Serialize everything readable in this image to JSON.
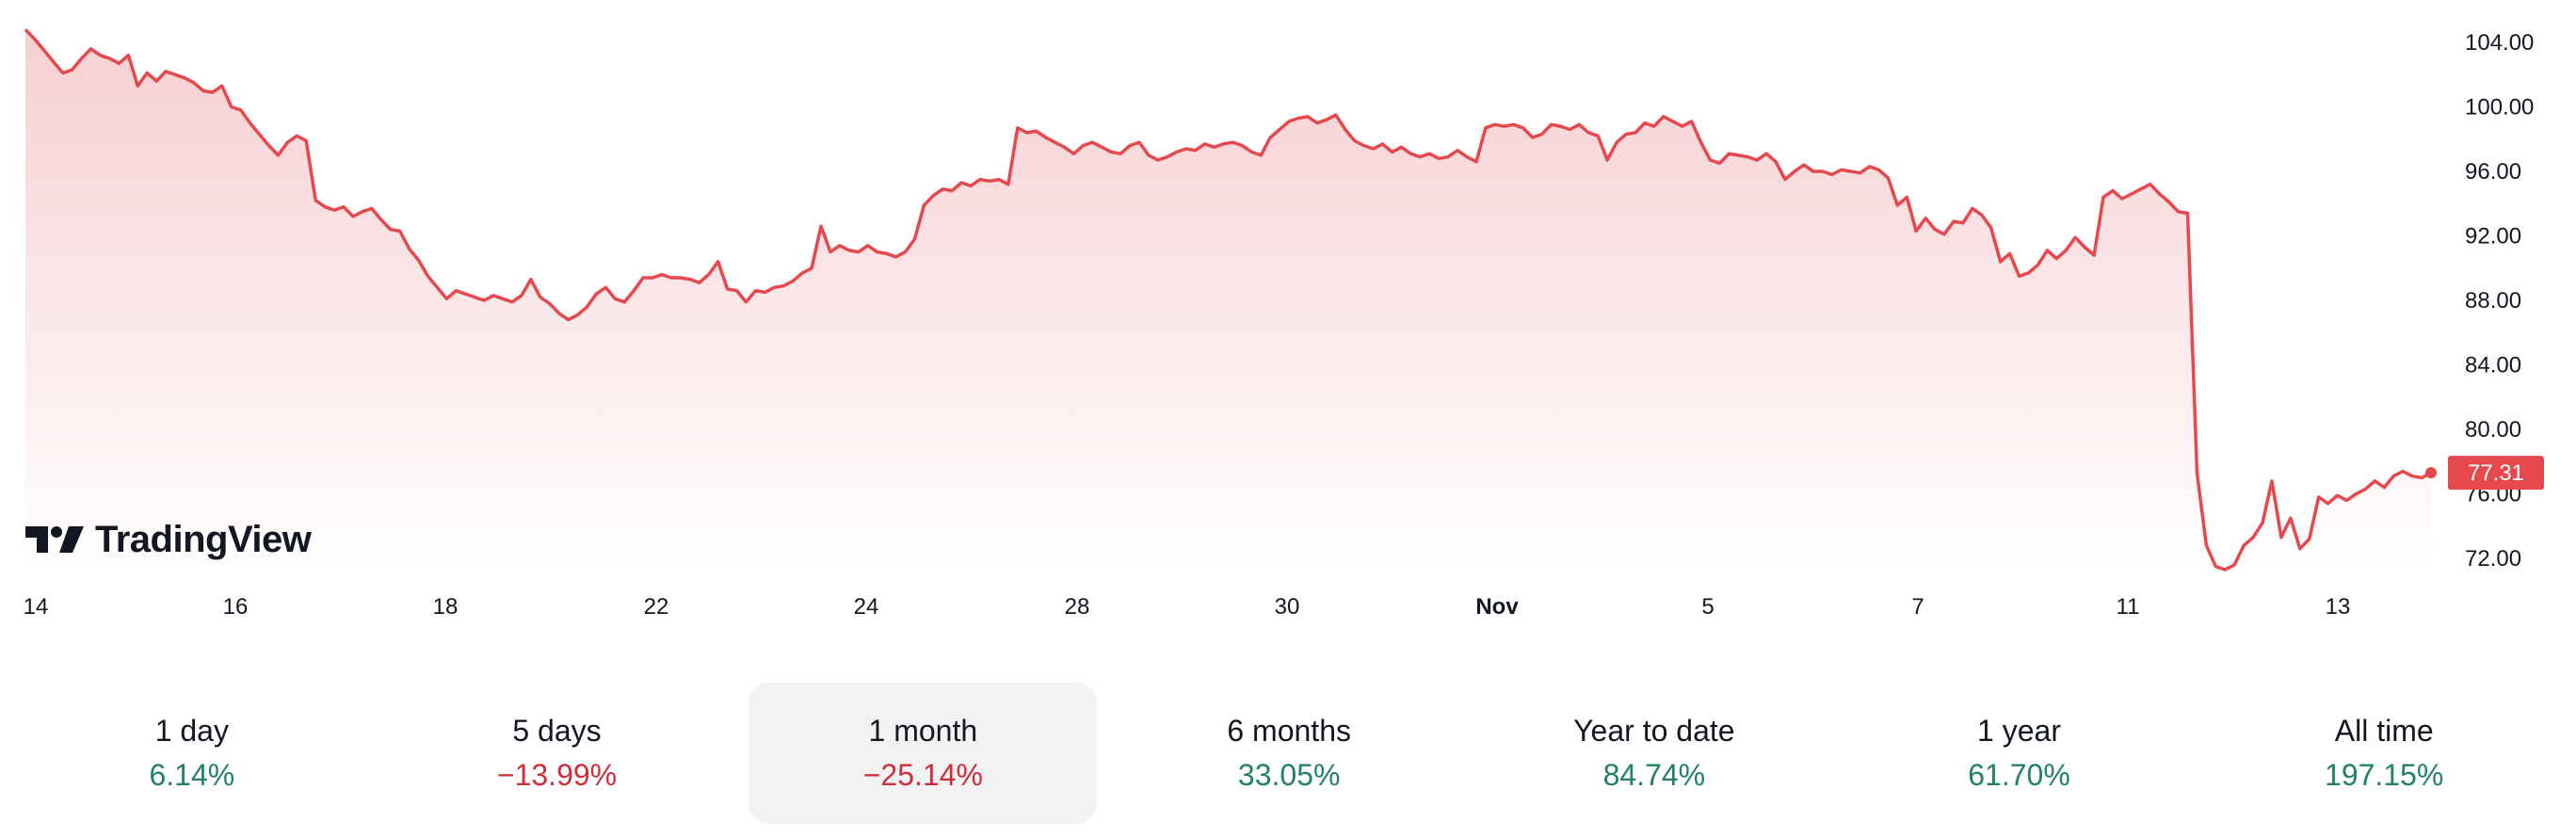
{
  "brand": {
    "name": "TradingView",
    "logo_icon": "tradingview-logo-icon"
  },
  "colors": {
    "line": "#e5484d",
    "area_top": "#f7cfd2",
    "area_bottom": "#ffffff",
    "positive": "#22806b",
    "negative": "#cc2f3c"
  },
  "chart_data": {
    "type": "area",
    "title": "",
    "xlabel": "",
    "ylabel": "",
    "ylim": [
      71,
      105
    ],
    "y_ticks": [
      "104.00",
      "100.00",
      "96.00",
      "92.00",
      "88.00",
      "84.00",
      "80.00",
      "76.00",
      "72.00"
    ],
    "x_ticks": [
      {
        "label": "14",
        "bold": false
      },
      {
        "label": "16",
        "bold": false
      },
      {
        "label": "18",
        "bold": false
      },
      {
        "label": "22",
        "bold": false
      },
      {
        "label": "24",
        "bold": false
      },
      {
        "label": "28",
        "bold": false
      },
      {
        "label": "30",
        "bold": false
      },
      {
        "label": "Nov",
        "bold": true
      },
      {
        "label": "5",
        "bold": false
      },
      {
        "label": "7",
        "bold": false
      },
      {
        "label": "11",
        "bold": false
      },
      {
        "label": "13",
        "bold": false
      }
    ],
    "last_price": "77.31",
    "grid": false,
    "series": [
      {
        "values": [
          104.8,
          104.2,
          103.5,
          102.8,
          102.1,
          102.3,
          103.0,
          103.6,
          103.2,
          103.0,
          102.7,
          103.2,
          101.3,
          102.1,
          101.6,
          102.2,
          102.0,
          101.8,
          101.5,
          101.0,
          100.9,
          101.3,
          100.0,
          99.8,
          99.0,
          98.3,
          97.6,
          97.0,
          97.8,
          98.2,
          97.9,
          94.2,
          93.8,
          93.6,
          93.8,
          93.2,
          93.5,
          93.7,
          93.0,
          92.4,
          92.3,
          91.2,
          90.5,
          89.5,
          88.8,
          88.1,
          88.6,
          88.4,
          88.2,
          88.0,
          88.3,
          88.1,
          87.9,
          88.3,
          89.3,
          88.2,
          87.8,
          87.2,
          86.8,
          87.1,
          87.6,
          88.4,
          88.8,
          88.1,
          87.9,
          88.6,
          89.4,
          89.4,
          89.6,
          89.4,
          89.4,
          89.3,
          89.1,
          89.6,
          90.4,
          88.7,
          88.6,
          87.9,
          88.6,
          88.5,
          88.8,
          88.9,
          89.2,
          89.7,
          90.0,
          92.6,
          91.0,
          91.4,
          91.1,
          91.0,
          91.4,
          91.0,
          90.9,
          90.7,
          91.0,
          91.8,
          93.9,
          94.5,
          94.9,
          94.8,
          95.3,
          95.1,
          95.5,
          95.4,
          95.5,
          95.2,
          98.7,
          98.4,
          98.5,
          98.1,
          97.8,
          97.5,
          97.1,
          97.6,
          97.8,
          97.5,
          97.2,
          97.1,
          97.6,
          97.8,
          97.0,
          96.7,
          96.9,
          97.2,
          97.4,
          97.3,
          97.7,
          97.5,
          97.7,
          97.8,
          97.6,
          97.2,
          97.0,
          98.1,
          98.6,
          99.1,
          99.3,
          99.4,
          99.0,
          99.2,
          99.5,
          98.6,
          97.9,
          97.6,
          97.4,
          97.7,
          97.2,
          97.5,
          97.1,
          96.9,
          97.1,
          96.8,
          96.9,
          97.3,
          96.9,
          96.6,
          98.7,
          98.9,
          98.8,
          98.9,
          98.7,
          98.1,
          98.3,
          98.9,
          98.8,
          98.6,
          98.9,
          98.4,
          98.2,
          96.7,
          97.8,
          98.3,
          98.4,
          99.0,
          98.8,
          99.4,
          99.1,
          98.8,
          99.1,
          97.8,
          96.7,
          96.5,
          97.1,
          97.0,
          96.9,
          96.7,
          97.1,
          96.6,
          95.5,
          96.0,
          96.4,
          96.0,
          96.0,
          95.8,
          96.1,
          96.0,
          95.9,
          96.3,
          96.1,
          95.6,
          93.9,
          94.4,
          92.3,
          93.1,
          92.4,
          92.1,
          92.9,
          92.8,
          93.7,
          93.3,
          92.5,
          90.4,
          90.9,
          89.5,
          89.7,
          90.2,
          91.1,
          90.6,
          91.1,
          91.9,
          91.3,
          90.8,
          94.4,
          94.8,
          94.3,
          94.6,
          94.9,
          95.2,
          94.6,
          94.1,
          93.5,
          93.4,
          77.3,
          72.8,
          71.5,
          71.3,
          71.6,
          72.8,
          73.3,
          74.2,
          76.8,
          73.3,
          74.5,
          72.6,
          73.2,
          75.8,
          75.4,
          75.9,
          75.6,
          76.0,
          76.3,
          76.8,
          76.4,
          77.1,
          77.4,
          77.1,
          77.0,
          77.31
        ]
      }
    ]
  },
  "periods": [
    {
      "label": "1 day",
      "change": "6.14%",
      "dir": "pos",
      "active": false
    },
    {
      "label": "5 days",
      "change": "−13.99%",
      "dir": "neg",
      "active": false
    },
    {
      "label": "1 month",
      "change": "−25.14%",
      "dir": "neg",
      "active": true
    },
    {
      "label": "6 months",
      "change": "33.05%",
      "dir": "pos",
      "active": false
    },
    {
      "label": "Year to date",
      "change": "84.74%",
      "dir": "pos",
      "active": false
    },
    {
      "label": "1 year",
      "change": "61.70%",
      "dir": "pos",
      "active": false
    },
    {
      "label": "All time",
      "change": "197.15%",
      "dir": "pos",
      "active": false
    }
  ]
}
